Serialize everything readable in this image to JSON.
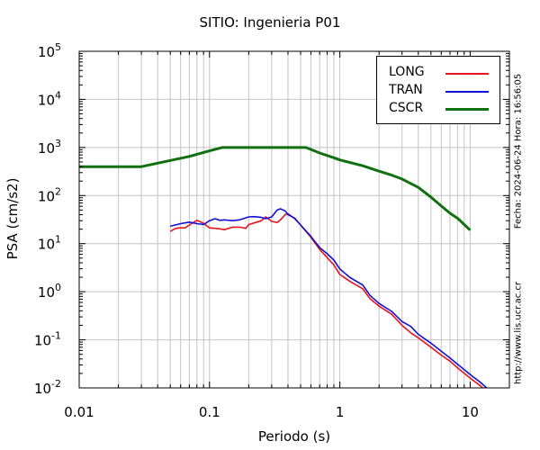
{
  "chart_data": {
    "type": "line",
    "title": "SITIO: Ingenieria P01",
    "xlabel": "Periodo (s)",
    "ylabel": "PSA (cm/s2)",
    "xscale": "log",
    "yscale": "log",
    "xlim": [
      0.01,
      20
    ],
    "ylim": [
      0.01,
      100000
    ],
    "x_ticks": [
      "0.01",
      "0.1",
      "1",
      "10"
    ],
    "y_ticks": [
      {
        "base": "10",
        "exp": "5"
      },
      {
        "base": "10",
        "exp": "4"
      },
      {
        "base": "10",
        "exp": "3"
      },
      {
        "base": "10",
        "exp": "2"
      },
      {
        "base": "10",
        "exp": "1"
      },
      {
        "base": "10",
        "exp": "0"
      },
      {
        "base": "10",
        "exp": "-1"
      },
      {
        "base": "10",
        "exp": "-2"
      }
    ],
    "grid": true,
    "legend_position": "top-right",
    "series": [
      {
        "name": "LONG",
        "color": "#e8141d",
        "x": [
          0.05,
          0.055,
          0.06,
          0.065,
          0.07,
          0.08,
          0.09,
          0.1,
          0.11,
          0.12,
          0.13,
          0.15,
          0.17,
          0.19,
          0.2,
          0.22,
          0.25,
          0.27,
          0.3,
          0.33,
          0.35,
          0.38,
          0.4,
          0.45,
          0.5,
          0.6,
          0.7,
          0.8,
          0.9,
          1.0,
          1.2,
          1.5,
          1.7,
          2.0,
          2.5,
          3.0,
          3.5,
          4.0,
          5.0,
          6.0,
          7.0,
          8.0,
          10.0,
          12.0,
          14.0
        ],
        "values": [
          17.9,
          20.8,
          21.3,
          21.3,
          24.4,
          30.5,
          26.5,
          21.3,
          20.8,
          20.3,
          19.5,
          22.0,
          22.0,
          20.8,
          25.0,
          27.0,
          30.0,
          36.0,
          29.0,
          27.5,
          31.2,
          40.0,
          42.0,
          33.0,
          24.4,
          13.5,
          7.56,
          5.11,
          3.61,
          2.29,
          1.63,
          1.15,
          0.72,
          0.5,
          0.34,
          0.2,
          0.14,
          0.11,
          0.07,
          0.048,
          0.036,
          0.026,
          0.016,
          0.011,
          0.0077
        ]
      },
      {
        "name": "TRAN",
        "color": "#1010d8",
        "x": [
          0.05,
          0.055,
          0.06,
          0.07,
          0.08,
          0.09,
          0.1,
          0.11,
          0.12,
          0.13,
          0.15,
          0.17,
          0.2,
          0.22,
          0.25,
          0.27,
          0.3,
          0.33,
          0.35,
          0.38,
          0.4,
          0.45,
          0.5,
          0.6,
          0.7,
          0.8,
          0.9,
          1.0,
          1.2,
          1.5,
          1.7,
          2.0,
          2.5,
          3.0,
          3.5,
          4.0,
          5.0,
          6.0,
          7.0,
          8.0,
          10.0,
          12.0,
          14.0,
          15.0
        ],
        "values": [
          23.0,
          24.5,
          26.0,
          28.0,
          26.0,
          25.0,
          30.0,
          33.0,
          30.5,
          31.2,
          30.0,
          31.2,
          36.0,
          36.5,
          35.0,
          33.0,
          36.0,
          50.0,
          53.0,
          48.0,
          40.0,
          34.0,
          24.4,
          14.1,
          8.26,
          6.15,
          4.54,
          2.97,
          1.96,
          1.38,
          0.84,
          0.57,
          0.39,
          0.24,
          0.19,
          0.13,
          0.085,
          0.058,
          0.042,
          0.031,
          0.019,
          0.013,
          0.0089,
          0.0077
        ]
      },
      {
        "name": "CSCR",
        "color": "#107010",
        "x": [
          0.01,
          0.03,
          0.05,
          0.07,
          0.1,
          0.125,
          0.2,
          0.3,
          0.4,
          0.55,
          0.7,
          0.9,
          1.0,
          1.5,
          2.0,
          2.5,
          3.0,
          3.5,
          4.0,
          5.0,
          6.0,
          7.0,
          8.0,
          10.0
        ],
        "values": [
          399,
          399,
          536,
          651,
          852,
          1000,
          1000,
          1000,
          1000,
          1000,
          766,
          611,
          551,
          416,
          322,
          266,
          221,
          178,
          148,
          93,
          60.5,
          43,
          33.7,
          19.1
        ]
      }
    ]
  },
  "side_text": {
    "timestamp": "Fecha: 2024-06-24 Hora: 16:56:05",
    "url": "http://www.lis.ucr.ac.cr"
  }
}
